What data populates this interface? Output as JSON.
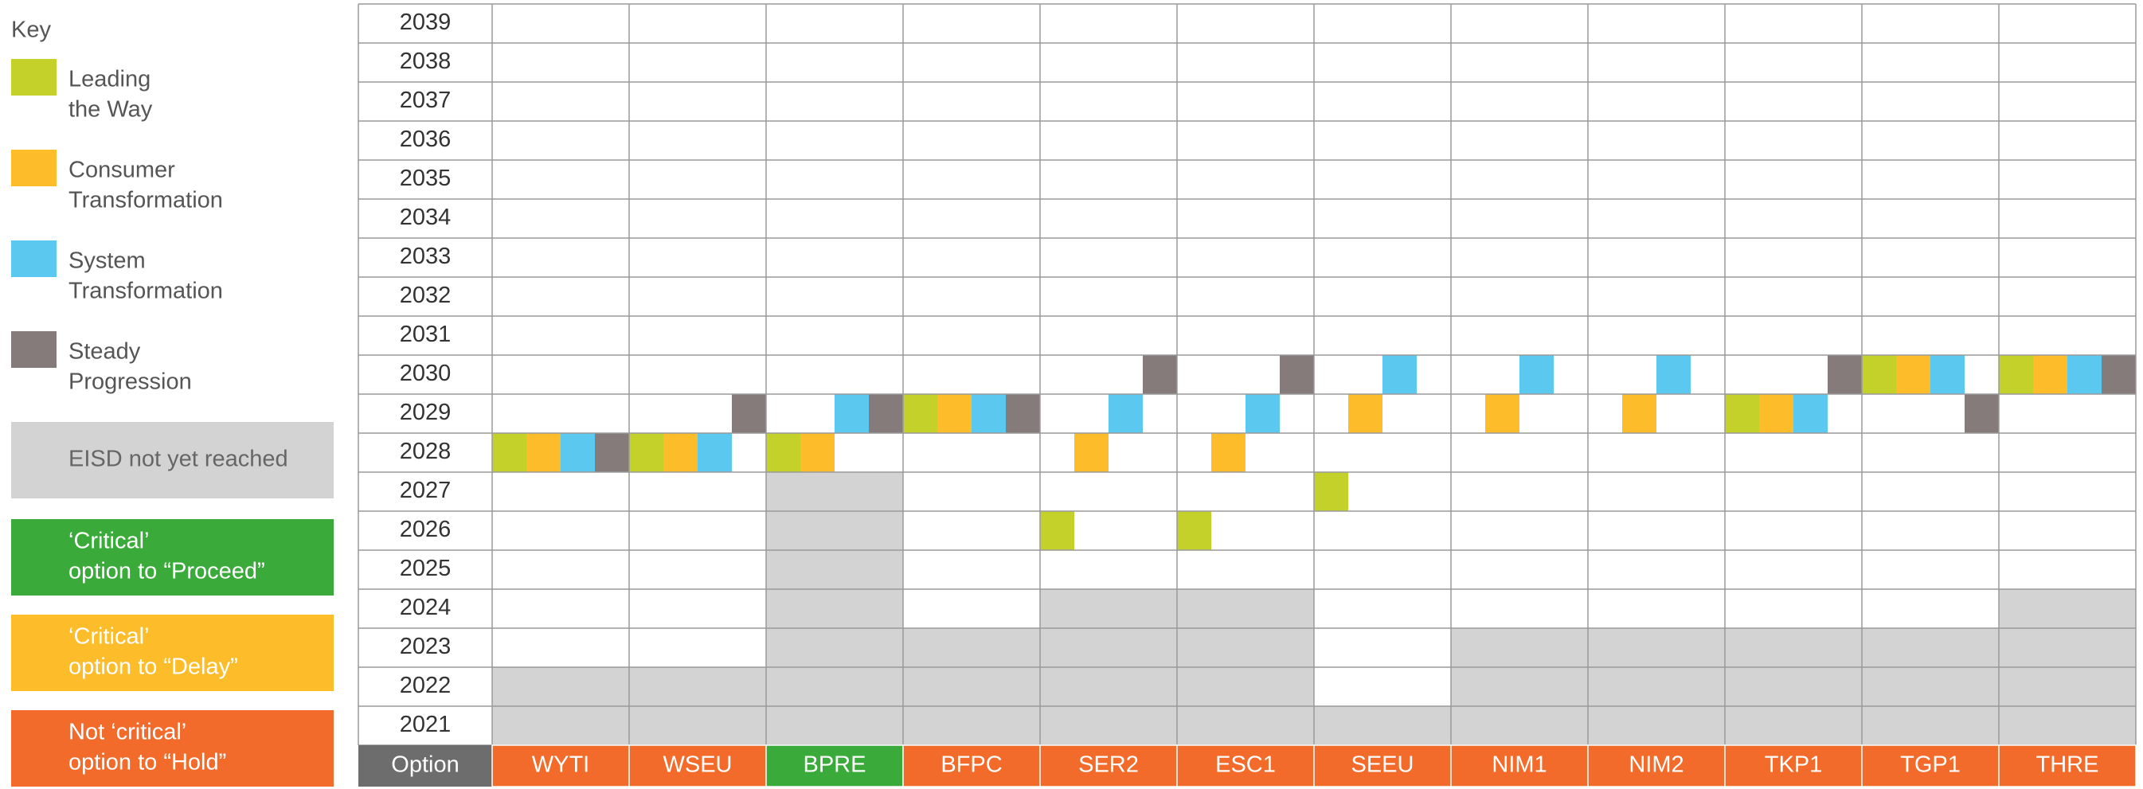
{
  "key": {
    "title": "Key",
    "items": [
      {
        "lines": [
          "Leading",
          "the Way"
        ],
        "color": "#c3d12a",
        "style": "swatch"
      },
      {
        "lines": [
          "Consumer",
          "Transformation"
        ],
        "color": "#fdbd2a",
        "style": "swatch"
      },
      {
        "lines": [
          "System",
          "Transformation"
        ],
        "color": "#5bc8f0",
        "style": "swatch"
      },
      {
        "lines": [
          "Steady",
          "Progression"
        ],
        "color": "#857b7a",
        "style": "swatch"
      },
      {
        "lines": [
          "EISD not yet reached"
        ],
        "color": "#d3d3d3",
        "style": "box"
      },
      {
        "lines": [
          "‘Critical’",
          "option to “Proceed”"
        ],
        "color": "#3aab3a",
        "style": "box"
      },
      {
        "lines": [
          "‘Critical’",
          "option to “Delay”"
        ],
        "color": "#fdbd2a",
        "style": "box"
      },
      {
        "lines": [
          "Not ‘critical’",
          "option to “Hold”"
        ],
        "color": "#f26b2a",
        "style": "box"
      }
    ]
  },
  "table": {
    "header": "Option",
    "years": [
      2039,
      2038,
      2037,
      2036,
      2035,
      2034,
      2033,
      2032,
      2031,
      2030,
      2029,
      2028,
      2027,
      2026,
      2025,
      2024,
      2023,
      2022,
      2021
    ],
    "options": [
      {
        "name": "WYTI",
        "status": 7,
        "eisd_not_reached": [
          2022,
          2021
        ],
        "years": [
          2028,
          2028,
          2028,
          2028
        ]
      },
      {
        "name": "WSEU",
        "status": 7,
        "eisd_not_reached": [
          2022,
          2021
        ],
        "years": [
          2028,
          2028,
          2028,
          2029
        ]
      },
      {
        "name": "BPRE",
        "status": 5,
        "eisd_not_reached": [
          2027,
          2026,
          2025,
          2024,
          2023,
          2022,
          2021
        ],
        "years": [
          2028,
          2028,
          2029,
          2029
        ]
      },
      {
        "name": "BFPC",
        "status": 7,
        "eisd_not_reached": [
          2023,
          2022,
          2021
        ],
        "years": [
          2029,
          2029,
          2029,
          2029
        ]
      },
      {
        "name": "SER2",
        "status": 7,
        "eisd_not_reached": [
          2024,
          2023,
          2022,
          2021
        ],
        "years": [
          2026,
          2028,
          2029,
          2030
        ]
      },
      {
        "name": "ESC1",
        "status": 7,
        "eisd_not_reached": [
          2024,
          2023,
          2022,
          2021
        ],
        "years": [
          2026,
          2028,
          2029,
          2030
        ]
      },
      {
        "name": "SEEU",
        "status": 7,
        "eisd_not_reached": [
          2021
        ],
        "years": [
          2027,
          2029,
          2030,
          null
        ]
      },
      {
        "name": "NIM1",
        "status": 7,
        "eisd_not_reached": [
          2023,
          2022,
          2021
        ],
        "years": [
          null,
          2029,
          2030,
          null
        ]
      },
      {
        "name": "NIM2",
        "status": 7,
        "eisd_not_reached": [
          2023,
          2022,
          2021
        ],
        "years": [
          null,
          2029,
          2030,
          null
        ]
      },
      {
        "name": "TKP1",
        "status": 7,
        "eisd_not_reached": [
          2023,
          2022,
          2021
        ],
        "years": [
          2029,
          2029,
          2029,
          2030
        ]
      },
      {
        "name": "TGP1",
        "status": 7,
        "eisd_not_reached": [
          2023,
          2022,
          2021
        ],
        "years": [
          2030,
          2030,
          2030,
          2029
        ]
      },
      {
        "name": "THRE",
        "status": 7,
        "eisd_not_reached": [
          2024,
          2023,
          2022,
          2021
        ],
        "years": [
          2030,
          2030,
          2030,
          2030
        ]
      }
    ]
  }
}
